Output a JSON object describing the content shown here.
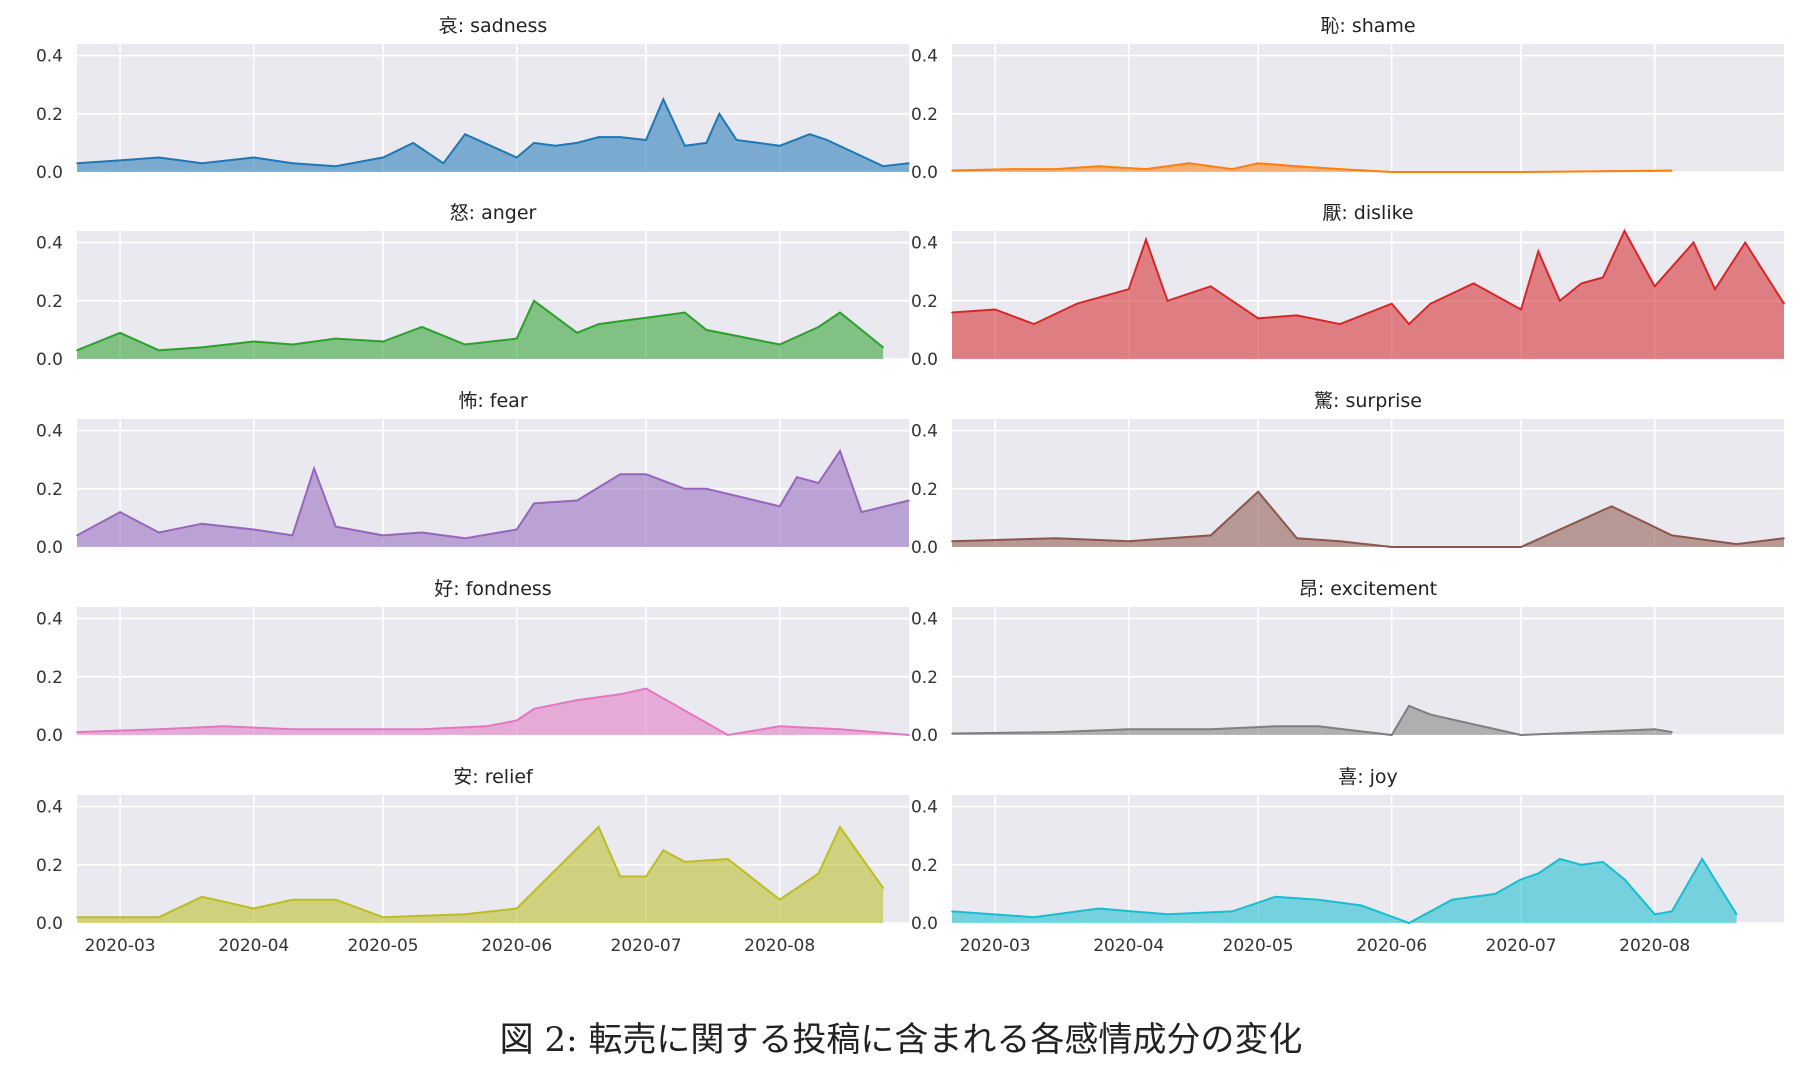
{
  "figure": {
    "caption": "図 2: 転売に関する投稿に含まれる各感情成分の変化"
  },
  "colors": {
    "axes_background": "#e9e9ef",
    "grid": "#ffffff",
    "tick_text": "#333333"
  },
  "chart_data": [
    {
      "type": "area",
      "title": "哀: sadness",
      "color": "#1f77b4",
      "ylim": [
        0,
        0.44
      ],
      "yticks": [
        "0.0",
        "0.2",
        "0.4"
      ],
      "xticks": [
        "2020-03",
        "2020-04",
        "2020-05",
        "2020-06",
        "2020-07",
        "2020-08"
      ],
      "grid": true,
      "series": [
        {
          "x": [
            "2020-02-20",
            "2020-03-01",
            "2020-03-10",
            "2020-03-20",
            "2020-04-01",
            "2020-04-10",
            "2020-04-20",
            "2020-05-01",
            "2020-05-08",
            "2020-05-15",
            "2020-05-20",
            "2020-06-01",
            "2020-06-05",
            "2020-06-10",
            "2020-06-15",
            "2020-06-20",
            "2020-06-25",
            "2020-07-01",
            "2020-07-05",
            "2020-07-10",
            "2020-07-15",
            "2020-07-18",
            "2020-07-22",
            "2020-08-01",
            "2020-08-08",
            "2020-08-12",
            "2020-08-25",
            "2020-08-31"
          ],
          "values": [
            0.03,
            0.04,
            0.05,
            0.03,
            0.05,
            0.03,
            0.02,
            0.05,
            0.1,
            0.03,
            0.13,
            0.05,
            0.1,
            0.09,
            0.1,
            0.12,
            0.12,
            0.11,
            0.25,
            0.09,
            0.1,
            0.2,
            0.11,
            0.09,
            0.13,
            0.11,
            0.02,
            0.03
          ]
        }
      ]
    },
    {
      "type": "area",
      "title": "恥: shame",
      "color": "#ff7f0e",
      "ylim": [
        0,
        0.44
      ],
      "yticks": [
        "0.0",
        "0.2",
        "0.4"
      ],
      "xticks": [
        "2020-03",
        "2020-04",
        "2020-05",
        "2020-06",
        "2020-07",
        "2020-08"
      ],
      "grid": true,
      "series": [
        {
          "x": [
            "2020-02-20",
            "2020-03-05",
            "2020-03-15",
            "2020-03-25",
            "2020-04-05",
            "2020-04-15",
            "2020-04-25",
            "2020-05-01",
            "2020-05-10",
            "2020-05-20",
            "2020-06-01",
            "2020-07-01",
            "2020-08-05"
          ],
          "values": [
            0.005,
            0.01,
            0.01,
            0.02,
            0.01,
            0.03,
            0.01,
            0.03,
            0.02,
            0.01,
            0.0,
            0.0,
            0.005
          ]
        }
      ]
    },
    {
      "type": "area",
      "title": "怒: anger",
      "color": "#2ca02c",
      "ylim": [
        0,
        0.44
      ],
      "yticks": [
        "0.0",
        "0.2",
        "0.4"
      ],
      "xticks": [
        "2020-03",
        "2020-04",
        "2020-05",
        "2020-06",
        "2020-07",
        "2020-08"
      ],
      "grid": true,
      "series": [
        {
          "x": [
            "2020-02-20",
            "2020-03-01",
            "2020-03-10",
            "2020-03-20",
            "2020-04-01",
            "2020-04-10",
            "2020-04-20",
            "2020-05-01",
            "2020-05-10",
            "2020-05-20",
            "2020-06-01",
            "2020-06-05",
            "2020-06-15",
            "2020-06-20",
            "2020-07-10",
            "2020-07-15",
            "2020-08-01",
            "2020-08-10",
            "2020-08-15",
            "2020-08-25"
          ],
          "values": [
            0.03,
            0.09,
            0.03,
            0.04,
            0.06,
            0.05,
            0.07,
            0.06,
            0.11,
            0.05,
            0.07,
            0.2,
            0.09,
            0.12,
            0.16,
            0.1,
            0.05,
            0.11,
            0.16,
            0.04
          ]
        }
      ]
    },
    {
      "type": "area",
      "title": "厭: dislike",
      "color": "#d62728",
      "ylim": [
        0,
        0.44
      ],
      "yticks": [
        "0.0",
        "0.2",
        "0.4"
      ],
      "xticks": [
        "2020-03",
        "2020-04",
        "2020-05",
        "2020-06",
        "2020-07",
        "2020-08"
      ],
      "grid": true,
      "series": [
        {
          "x": [
            "2020-02-20",
            "2020-03-01",
            "2020-03-10",
            "2020-03-20",
            "2020-04-01",
            "2020-04-05",
            "2020-04-10",
            "2020-04-20",
            "2020-05-01",
            "2020-05-10",
            "2020-05-20",
            "2020-06-01",
            "2020-06-05",
            "2020-06-10",
            "2020-06-20",
            "2020-07-01",
            "2020-07-05",
            "2020-07-10",
            "2020-07-15",
            "2020-07-20",
            "2020-07-25",
            "2020-08-01",
            "2020-08-10",
            "2020-08-15",
            "2020-08-22",
            "2020-08-31"
          ],
          "values": [
            0.16,
            0.17,
            0.12,
            0.19,
            0.24,
            0.41,
            0.2,
            0.25,
            0.14,
            0.15,
            0.12,
            0.19,
            0.12,
            0.19,
            0.26,
            0.17,
            0.37,
            0.2,
            0.26,
            0.28,
            0.44,
            0.25,
            0.4,
            0.24,
            0.4,
            0.19
          ]
        }
      ]
    },
    {
      "type": "area",
      "title": "怖: fear",
      "color": "#9467bd",
      "ylim": [
        0,
        0.44
      ],
      "yticks": [
        "0.0",
        "0.2",
        "0.4"
      ],
      "xticks": [
        "2020-03",
        "2020-04",
        "2020-05",
        "2020-06",
        "2020-07",
        "2020-08"
      ],
      "grid": true,
      "series": [
        {
          "x": [
            "2020-02-20",
            "2020-03-01",
            "2020-03-10",
            "2020-03-20",
            "2020-04-01",
            "2020-04-10",
            "2020-04-15",
            "2020-04-20",
            "2020-05-01",
            "2020-05-10",
            "2020-05-20",
            "2020-06-01",
            "2020-06-05",
            "2020-06-15",
            "2020-06-25",
            "2020-07-01",
            "2020-07-10",
            "2020-07-15",
            "2020-08-01",
            "2020-08-05",
            "2020-08-10",
            "2020-08-15",
            "2020-08-20",
            "2020-08-31"
          ],
          "values": [
            0.04,
            0.12,
            0.05,
            0.08,
            0.06,
            0.04,
            0.27,
            0.07,
            0.04,
            0.05,
            0.03,
            0.06,
            0.15,
            0.16,
            0.25,
            0.25,
            0.2,
            0.2,
            0.14,
            0.24,
            0.22,
            0.33,
            0.12,
            0.16
          ]
        }
      ]
    },
    {
      "type": "area",
      "title": "驚: surprise",
      "color": "#8c564b",
      "ylim": [
        0,
        0.44
      ],
      "yticks": [
        "0.0",
        "0.2",
        "0.4"
      ],
      "xticks": [
        "2020-03",
        "2020-04",
        "2020-05",
        "2020-06",
        "2020-07",
        "2020-08"
      ],
      "grid": true,
      "series": [
        {
          "x": [
            "2020-02-20",
            "2020-03-15",
            "2020-04-01",
            "2020-04-20",
            "2020-05-01",
            "2020-05-10",
            "2020-05-20",
            "2020-06-01",
            "2020-07-01",
            "2020-07-22",
            "2020-08-05",
            "2020-08-20",
            "2020-08-31"
          ],
          "values": [
            0.02,
            0.03,
            0.02,
            0.04,
            0.19,
            0.03,
            0.02,
            0.0,
            0.0,
            0.14,
            0.04,
            0.01,
            0.03
          ]
        }
      ]
    },
    {
      "type": "area",
      "title": "好: fondness",
      "color": "#e377c2",
      "ylim": [
        0,
        0.44
      ],
      "yticks": [
        "0.0",
        "0.2",
        "0.4"
      ],
      "xticks": [
        "2020-03",
        "2020-04",
        "2020-05",
        "2020-06",
        "2020-07",
        "2020-08"
      ],
      "grid": true,
      "series": [
        {
          "x": [
            "2020-02-20",
            "2020-03-10",
            "2020-03-25",
            "2020-04-10",
            "2020-04-25",
            "2020-05-10",
            "2020-05-25",
            "2020-06-01",
            "2020-06-05",
            "2020-06-15",
            "2020-06-25",
            "2020-07-01",
            "2020-07-20",
            "2020-08-01",
            "2020-08-15",
            "2020-08-31"
          ],
          "values": [
            0.01,
            0.02,
            0.03,
            0.02,
            0.02,
            0.02,
            0.03,
            0.05,
            0.09,
            0.12,
            0.14,
            0.16,
            0.0,
            0.03,
            0.02,
            0.0
          ]
        }
      ]
    },
    {
      "type": "area",
      "title": "昂: excitement",
      "color": "#7f7f7f",
      "ylim": [
        0,
        0.44
      ],
      "yticks": [
        "0.0",
        "0.2",
        "0.4"
      ],
      "xticks": [
        "2020-03",
        "2020-04",
        "2020-05",
        "2020-06",
        "2020-07",
        "2020-08"
      ],
      "grid": true,
      "series": [
        {
          "x": [
            "2020-02-20",
            "2020-03-15",
            "2020-04-01",
            "2020-04-20",
            "2020-05-05",
            "2020-05-15",
            "2020-06-01",
            "2020-06-05",
            "2020-06-10",
            "2020-07-01",
            "2020-08-01",
            "2020-08-05"
          ],
          "values": [
            0.005,
            0.01,
            0.02,
            0.02,
            0.03,
            0.03,
            0.0,
            0.1,
            0.07,
            0.0,
            0.02,
            0.01
          ]
        }
      ]
    },
    {
      "type": "area",
      "title": "安: relief",
      "color": "#bcbd22",
      "ylim": [
        0,
        0.44
      ],
      "yticks": [
        "0.0",
        "0.2",
        "0.4"
      ],
      "xticks": [
        "2020-03",
        "2020-04",
        "2020-05",
        "2020-06",
        "2020-07",
        "2020-08"
      ],
      "grid": true,
      "series": [
        {
          "x": [
            "2020-02-20",
            "2020-03-10",
            "2020-03-20",
            "2020-04-01",
            "2020-04-10",
            "2020-04-20",
            "2020-05-01",
            "2020-05-20",
            "2020-06-01",
            "2020-06-20",
            "2020-06-25",
            "2020-07-01",
            "2020-07-05",
            "2020-07-10",
            "2020-07-20",
            "2020-08-01",
            "2020-08-10",
            "2020-08-15",
            "2020-08-25"
          ],
          "values": [
            0.02,
            0.02,
            0.09,
            0.05,
            0.08,
            0.08,
            0.02,
            0.03,
            0.05,
            0.33,
            0.16,
            0.16,
            0.25,
            0.21,
            0.22,
            0.08,
            0.17,
            0.33,
            0.12
          ]
        }
      ]
    },
    {
      "type": "area",
      "title": "喜: joy",
      "color": "#17becf",
      "ylim": [
        0,
        0.44
      ],
      "yticks": [
        "0.0",
        "0.2",
        "0.4"
      ],
      "xticks": [
        "2020-03",
        "2020-04",
        "2020-05",
        "2020-06",
        "2020-07",
        "2020-08"
      ],
      "grid": true,
      "series": [
        {
          "x": [
            "2020-02-20",
            "2020-03-10",
            "2020-03-25",
            "2020-04-10",
            "2020-04-25",
            "2020-05-05",
            "2020-05-15",
            "2020-05-25",
            "2020-06-05",
            "2020-06-15",
            "2020-06-25",
            "2020-07-01",
            "2020-07-05",
            "2020-07-10",
            "2020-07-15",
            "2020-07-20",
            "2020-07-25",
            "2020-08-01",
            "2020-08-05",
            "2020-08-12",
            "2020-08-20"
          ],
          "values": [
            0.04,
            0.02,
            0.05,
            0.03,
            0.04,
            0.09,
            0.08,
            0.06,
            0.0,
            0.08,
            0.1,
            0.15,
            0.17,
            0.22,
            0.2,
            0.21,
            0.15,
            0.03,
            0.04,
            0.22,
            0.03
          ]
        }
      ]
    }
  ]
}
